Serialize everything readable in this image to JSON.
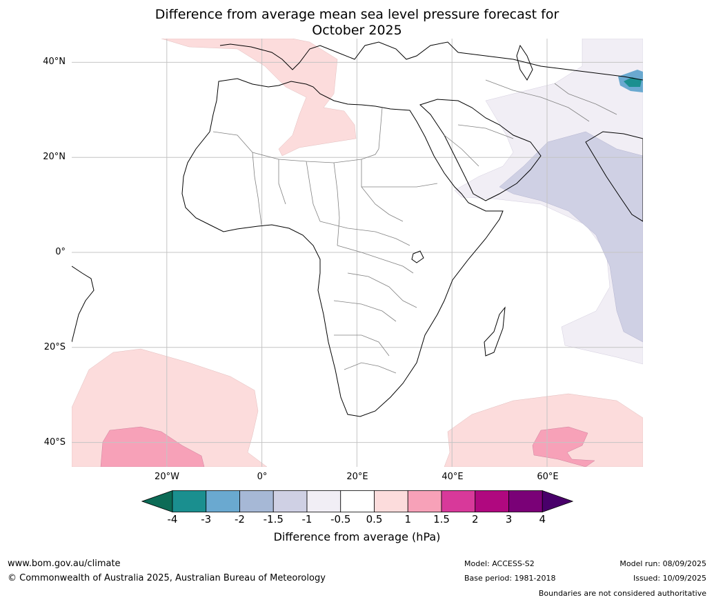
{
  "title_line1": "Difference from average mean sea level pressure forecast for",
  "title_line2": "October 2025",
  "lat_labels": [
    "40°N",
    "20°N",
    "0°",
    "20°S",
    "40°S"
  ],
  "lon_labels": [
    "20°W",
    "0°",
    "20°E",
    "40°E",
    "60°E"
  ],
  "colorbar": {
    "ticks": [
      "-4",
      "-3",
      "-2",
      "-1.5",
      "-1",
      "-0.5",
      "0.5",
      "1",
      "1.5",
      "2",
      "3",
      "4"
    ],
    "colors": [
      "#1a8f8f",
      "#6aa9d0",
      "#a6b8d6",
      "#cfd0e4",
      "#f1eef5",
      "#ffffff",
      "#fcdcdc",
      "#f7a1b8",
      "#d8399a",
      "#b0087f",
      "#7a0177"
    ],
    "under_color": "#0c6b56",
    "over_color": "#49006a",
    "label": "Difference from average (hPa)"
  },
  "footer": {
    "website": "www.bom.gov.au/climate",
    "copyright": "© Commonwealth of Australia 2025, Australian Bureau of Meteorology",
    "model": "Model: ACCESS-S2",
    "base_period": "Base period: 1981-2018",
    "model_run": "Model run: 08/09/2025",
    "issued": "Issued: 10/09/2025",
    "disclaimer": "Boundaries are not considered authoritative"
  },
  "map_colors": {
    "light_pink": "#fcdcdc",
    "pink": "#f7a1b8",
    "light_lavender": "#f1eef5",
    "lavender": "#cfd0e4",
    "teal": "#1a8f8f"
  }
}
